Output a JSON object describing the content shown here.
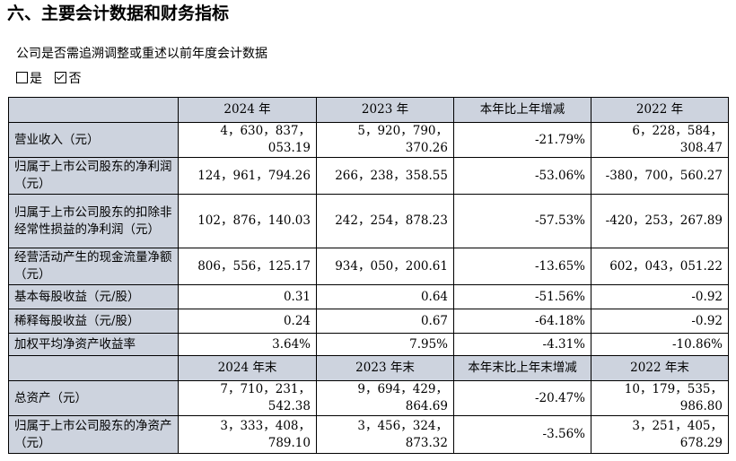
{
  "heading": "六、主要会计数据和财务指标",
  "subtitle": "公司是否需追溯调整或重述以前年度会计数据",
  "choice_yes": "是",
  "choice_no": "否",
  "header1": [
    "2024 年",
    "2023 年",
    "本年比上年增减",
    "2022 年"
  ],
  "header2": [
    "2024 年末",
    "2023 年末",
    "本年末比上年末增减",
    "2022 年末"
  ],
  "rows": [
    {
      "label": "营业收入（元）",
      "values": [
        "4，630，837，053.19",
        "5，920，790，370.26",
        "-21.79%",
        "6，228，584，308.47"
      ]
    },
    {
      "label": "归属于上市公司股东的净利润（元）",
      "values": [
        "124，961，794.26",
        "266，238，358.55",
        "-53.06%",
        "-380，700，560.27"
      ]
    },
    {
      "label": "归属于上市公司股东的扣除非经常性损益的净利润（元）",
      "values": [
        "102，876，140.03",
        "242，254，878.23",
        "-57.53%",
        "-420，253，267.89"
      ]
    },
    {
      "label": "经营活动产生的现金流量净额（元）",
      "values": [
        "806，556，125.17",
        "934，050，200.61",
        "-13.65%",
        "602，043，051.22"
      ]
    },
    {
      "label": "基本每股收益（元/股）",
      "values": [
        "0.31",
        "0.64",
        "-51.56%",
        "-0.92"
      ]
    },
    {
      "label": "稀释每股收益（元/股）",
      "values": [
        "0.24",
        "0.67",
        "-64.18%",
        "-0.92"
      ]
    },
    {
      "label": "加权平均净资产收益率",
      "values": [
        "3.64%",
        "7.95%",
        "-4.31%",
        "-10.86%"
      ]
    }
  ],
  "rows2": [
    {
      "label": "总资产（元）",
      "values": [
        "7，710，231，542.38",
        "9，694，429，864.69",
        "-20.47%",
        "10，179，535，986.80"
      ]
    },
    {
      "label": "归属于上市公司股东的净资产（元）",
      "values": [
        "3，333，408，789.10",
        "3，456，324，873.32",
        "-3.56%",
        "3，251，405，678.29"
      ]
    }
  ]
}
